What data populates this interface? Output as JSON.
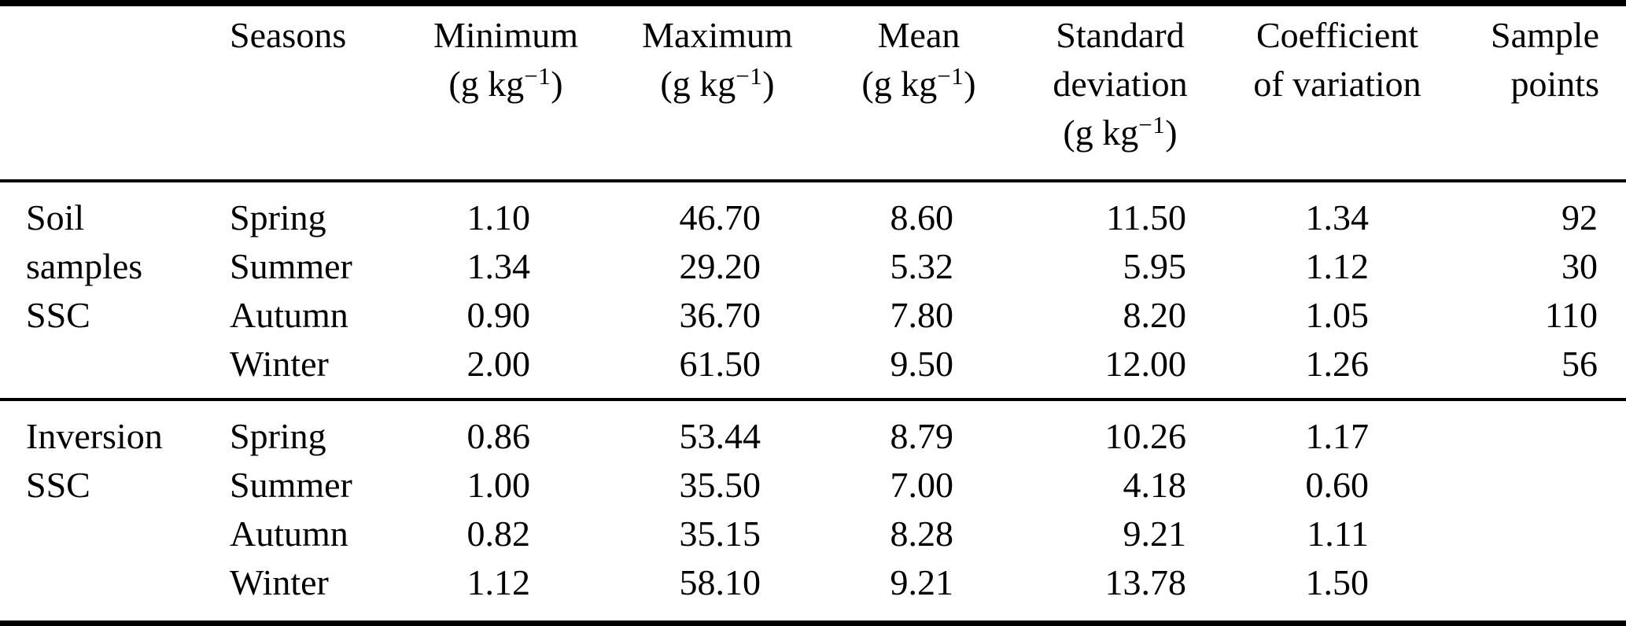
{
  "table": {
    "unit": {
      "prefix": "(g kg",
      "sup": "−1",
      "suffix": ")"
    },
    "columns": [
      {
        "id": "group",
        "label": ""
      },
      {
        "id": "seasons",
        "label": "Seasons"
      },
      {
        "id": "minimum",
        "label": "Minimum",
        "has_unit": true
      },
      {
        "id": "maximum",
        "label": "Maximum",
        "has_unit": true
      },
      {
        "id": "mean",
        "label": "Mean",
        "has_unit": true
      },
      {
        "id": "stddev",
        "label": "Standard",
        "label2": "deviation",
        "has_unit": true
      },
      {
        "id": "cv",
        "label": "Coefficient",
        "label2": "of variation"
      },
      {
        "id": "sample",
        "label": "Sample",
        "label2": "points"
      }
    ],
    "groups": [
      {
        "name": "Soil samples SSC",
        "rows": [
          [
            "Soil",
            "Spring",
            "1.10",
            "46.70",
            "8.60",
            "11.50",
            "1.34",
            "92"
          ],
          [
            "samples",
            "Summer",
            "1.34",
            "29.20",
            "5.32",
            "5.95",
            "1.12",
            "30"
          ],
          [
            "SSC",
            "Autumn",
            "0.90",
            "36.70",
            "7.80",
            "8.20",
            "1.05",
            "110"
          ],
          [
            "",
            "Winter",
            "2.00",
            "61.50",
            "9.50",
            "12.00",
            "1.26",
            "56"
          ]
        ]
      },
      {
        "name": "Inversion SSC",
        "rows": [
          [
            "Inversion",
            "Spring",
            "0.86",
            "53.44",
            "8.79",
            "10.26",
            "1.17",
            ""
          ],
          [
            "SSC",
            "Summer",
            "1.00",
            "35.50",
            "7.00",
            "4.18",
            "0.60",
            ""
          ],
          [
            "",
            "Autumn",
            "0.82",
            "35.15",
            "8.28",
            "9.21",
            "1.11",
            ""
          ],
          [
            "",
            "Winter",
            "1.12",
            "58.10",
            "9.21",
            "13.78",
            "1.50",
            ""
          ]
        ]
      }
    ]
  }
}
